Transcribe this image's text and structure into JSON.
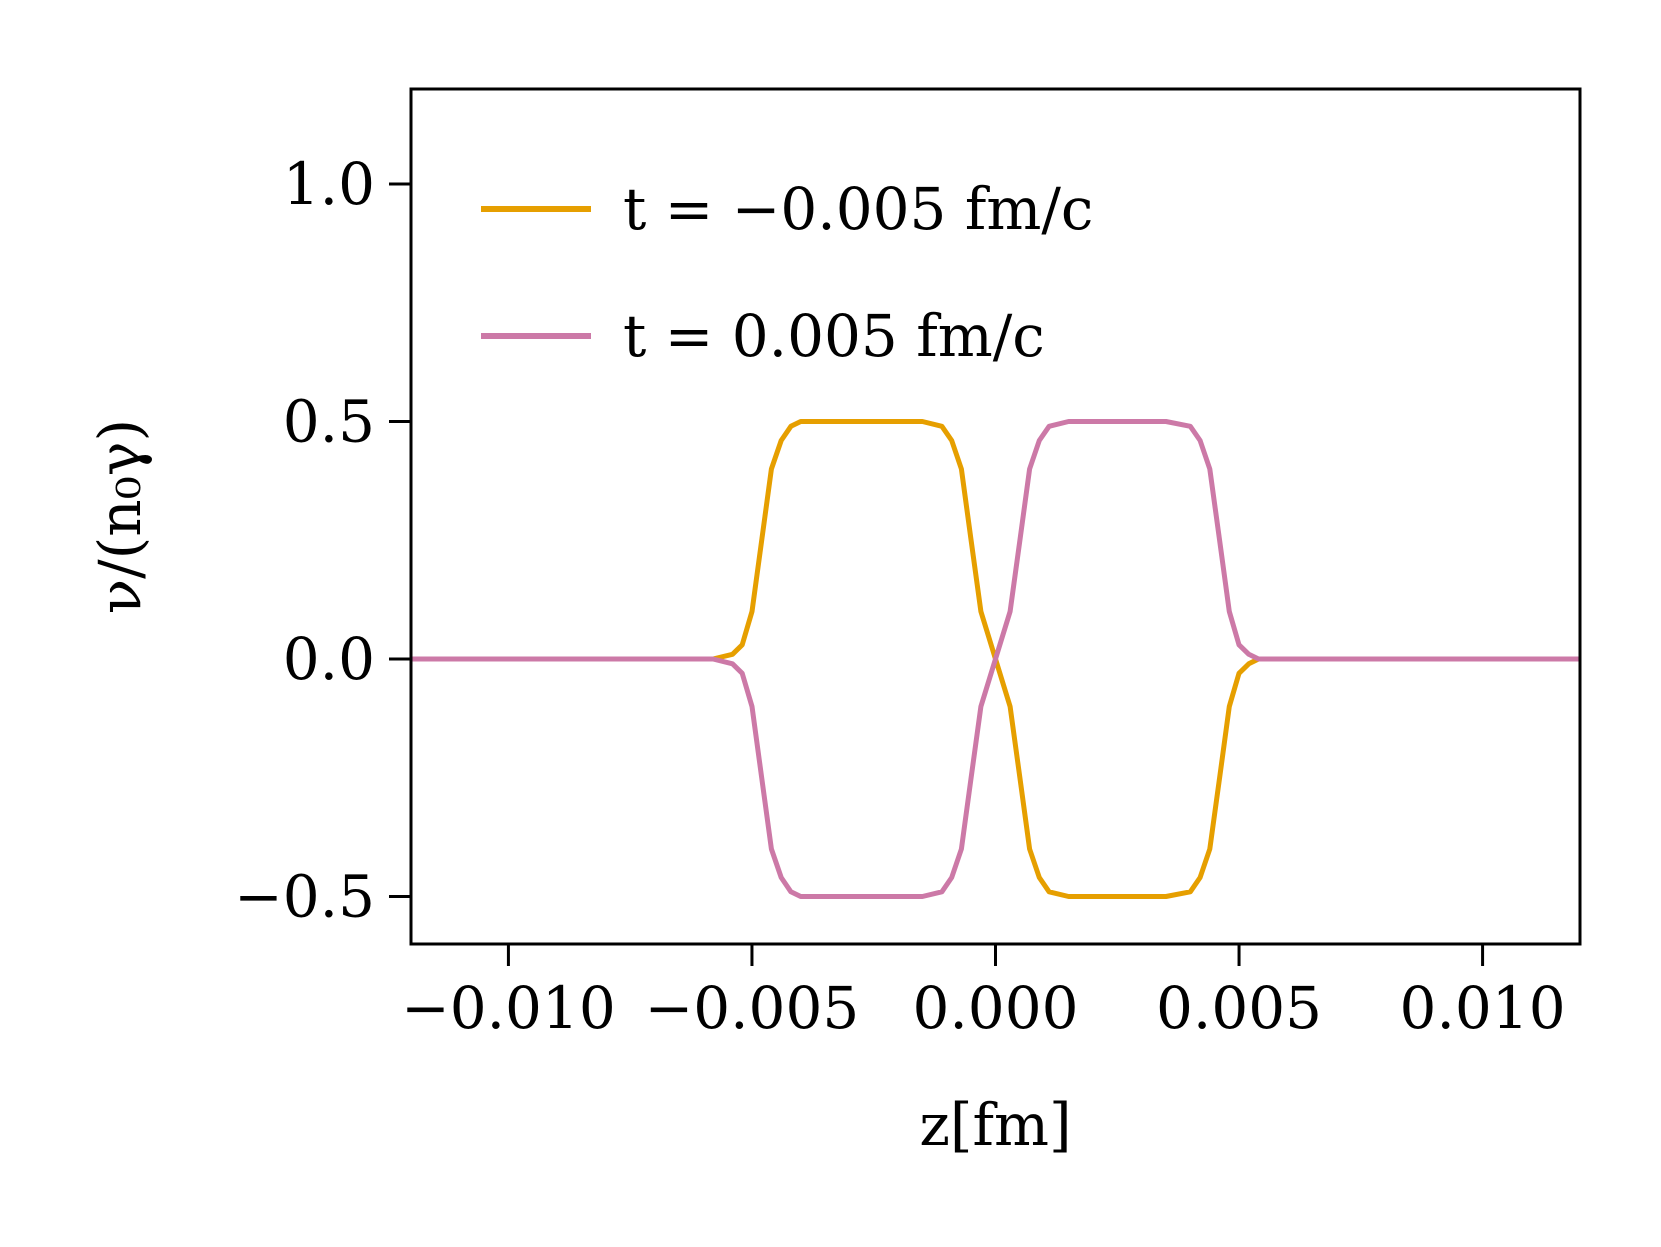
{
  "chart_data": {
    "type": "line",
    "title": "",
    "xlabel": "z[fm]",
    "ylabel": "ν/(n₀γ)",
    "xlim": [
      -0.012,
      0.012
    ],
    "ylim": [
      -0.6,
      1.2
    ],
    "xticks": [
      -0.01,
      -0.005,
      0.0,
      0.005,
      0.01
    ],
    "xtick_labels": [
      "−0.010",
      "−0.005",
      "0.000",
      "0.005",
      "0.010"
    ],
    "yticks": [
      -0.5,
      0.0,
      0.5,
      1.0
    ],
    "ytick_labels": [
      "−0.5",
      "0.0",
      "0.5",
      "1.0"
    ],
    "grid": false,
    "legend_position": "top-left",
    "series": [
      {
        "name": "t = −0.005 fm/c",
        "color": "#E69F00",
        "x": [
          -0.012,
          -0.0058,
          -0.0054,
          -0.0052,
          -0.005,
          -0.0048,
          -0.0046,
          -0.0044,
          -0.0042,
          -0.004,
          -0.0035,
          -0.003,
          -0.0015,
          -0.0011,
          -0.0009,
          -0.0007,
          -0.0005,
          -0.0003,
          0.0,
          0.0003,
          0.0005,
          0.0007,
          0.0009,
          0.0011,
          0.0015,
          0.002,
          0.0035,
          0.004,
          0.0042,
          0.0044,
          0.0046,
          0.0048,
          0.005,
          0.0052,
          0.0054,
          0.0058,
          0.012
        ],
        "y": [
          0.0,
          0.0,
          0.01,
          0.03,
          0.1,
          0.25,
          0.4,
          0.46,
          0.49,
          0.5,
          0.5,
          0.5,
          0.5,
          0.49,
          0.46,
          0.4,
          0.25,
          0.1,
          0.0,
          -0.1,
          -0.25,
          -0.4,
          -0.46,
          -0.49,
          -0.5,
          -0.5,
          -0.5,
          -0.49,
          -0.46,
          -0.4,
          -0.25,
          -0.1,
          -0.03,
          -0.01,
          0.0,
          0.0,
          0.0
        ]
      },
      {
        "name": "t = 0.005 fm/c",
        "color": "#CC79A7",
        "x": [
          -0.012,
          -0.0058,
          -0.0054,
          -0.0052,
          -0.005,
          -0.0048,
          -0.0046,
          -0.0044,
          -0.0042,
          -0.004,
          -0.0035,
          -0.003,
          -0.0015,
          -0.0011,
          -0.0009,
          -0.0007,
          -0.0005,
          -0.0003,
          0.0,
          0.0003,
          0.0005,
          0.0007,
          0.0009,
          0.0011,
          0.0015,
          0.002,
          0.0035,
          0.004,
          0.0042,
          0.0044,
          0.0046,
          0.0048,
          0.005,
          0.0052,
          0.0054,
          0.0058,
          0.012
        ],
        "y": [
          0.0,
          0.0,
          -0.01,
          -0.03,
          -0.1,
          -0.25,
          -0.4,
          -0.46,
          -0.49,
          -0.5,
          -0.5,
          -0.5,
          -0.5,
          -0.49,
          -0.46,
          -0.4,
          -0.25,
          -0.1,
          0.0,
          0.1,
          0.25,
          0.4,
          0.46,
          0.49,
          0.5,
          0.5,
          0.5,
          0.49,
          0.46,
          0.4,
          0.25,
          0.1,
          0.03,
          0.01,
          0.0,
          0.0,
          0.0
        ]
      }
    ]
  }
}
